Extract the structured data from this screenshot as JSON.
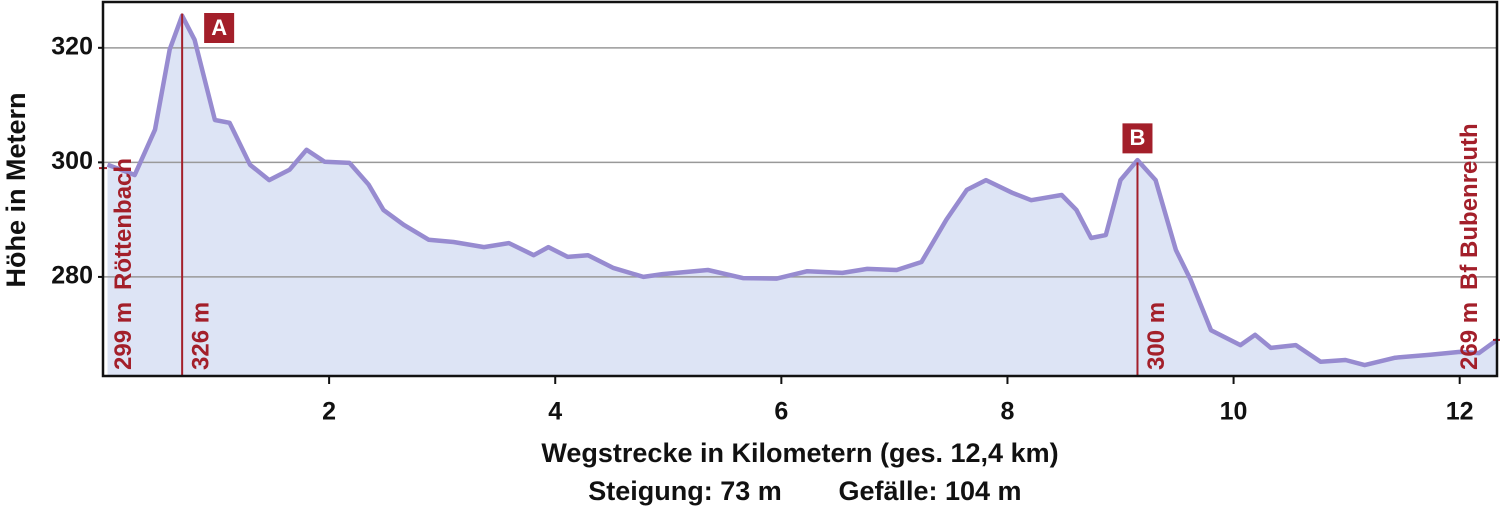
{
  "chart_data": {
    "type": "area",
    "x_label": "Wegstrecke in Kilometern (ges. 12,4 km)",
    "y_label": "Höhe in Metern",
    "notes": [
      "Steigung: 73 m",
      "Gefälle: 104 m"
    ],
    "x": [
      0.04,
      0.28,
      0.46,
      0.59,
      0.7,
      0.81,
      0.99,
      1.12,
      1.3,
      1.47,
      1.65,
      1.8,
      1.96,
      2.18,
      2.35,
      2.48,
      2.66,
      2.88,
      3.1,
      3.37,
      3.59,
      3.81,
      3.94,
      4.11,
      4.29,
      4.51,
      4.78,
      4.95,
      5.35,
      5.66,
      5.96,
      6.23,
      6.54,
      6.76,
      7.02,
      7.24,
      7.46,
      7.64,
      7.81,
      8.04,
      8.21,
      8.48,
      8.61,
      8.74,
      8.87,
      9.0,
      9.15,
      9.31,
      9.49,
      9.62,
      9.8,
      10.06,
      10.19,
      10.33,
      10.55,
      10.77,
      10.99,
      11.16,
      11.43,
      11.74,
      12.0,
      12.17,
      12.33
    ],
    "values": [
      299.6,
      297.8,
      305.7,
      319.7,
      325.6,
      321.4,
      307.4,
      306.9,
      299.6,
      296.9,
      298.7,
      302.2,
      300.1,
      299.9,
      296.1,
      291.7,
      289.1,
      286.5,
      286.1,
      285.2,
      285.9,
      283.8,
      285.2,
      283.5,
      283.8,
      281.6,
      280,
      280.5,
      281.2,
      279.8,
      279.7,
      281,
      280.7,
      281.4,
      281.2,
      282.6,
      290,
      295.2,
      296.9,
      294.7,
      293.4,
      294.3,
      291.7,
      286.8,
      287.3,
      296.9,
      300.4,
      296.9,
      284.7,
      279.5,
      270.7,
      268.1,
      269.9,
      267.6,
      268.1,
      265.2,
      265.5,
      264.6,
      265.9,
      266.4,
      266.9,
      266.7,
      269
    ],
    "color": "#978bd0",
    "fill_color": "#dde4f5",
    "marker_color": "#a31f2a",
    "markers": [
      {
        "label": "A",
        "x": 0.7,
        "value": 326,
        "value_label": "326 m"
      },
      {
        "label": "B",
        "x": 9.15,
        "value": 300,
        "value_label": "300 m"
      }
    ],
    "endpoints": [
      {
        "name": "Röttenbach",
        "value": 299,
        "value_label": "299 m"
      },
      {
        "name": "Bf Bubenreuth",
        "value": 269,
        "value_label": "269 m"
      }
    ],
    "xlim": [
      0,
      12.33
    ],
    "ylim": [
      262.7,
      328
    ],
    "xticks": [
      2,
      4,
      6,
      8,
      10,
      12
    ],
    "yticks": [
      280,
      300,
      320
    ],
    "grid": true
  }
}
